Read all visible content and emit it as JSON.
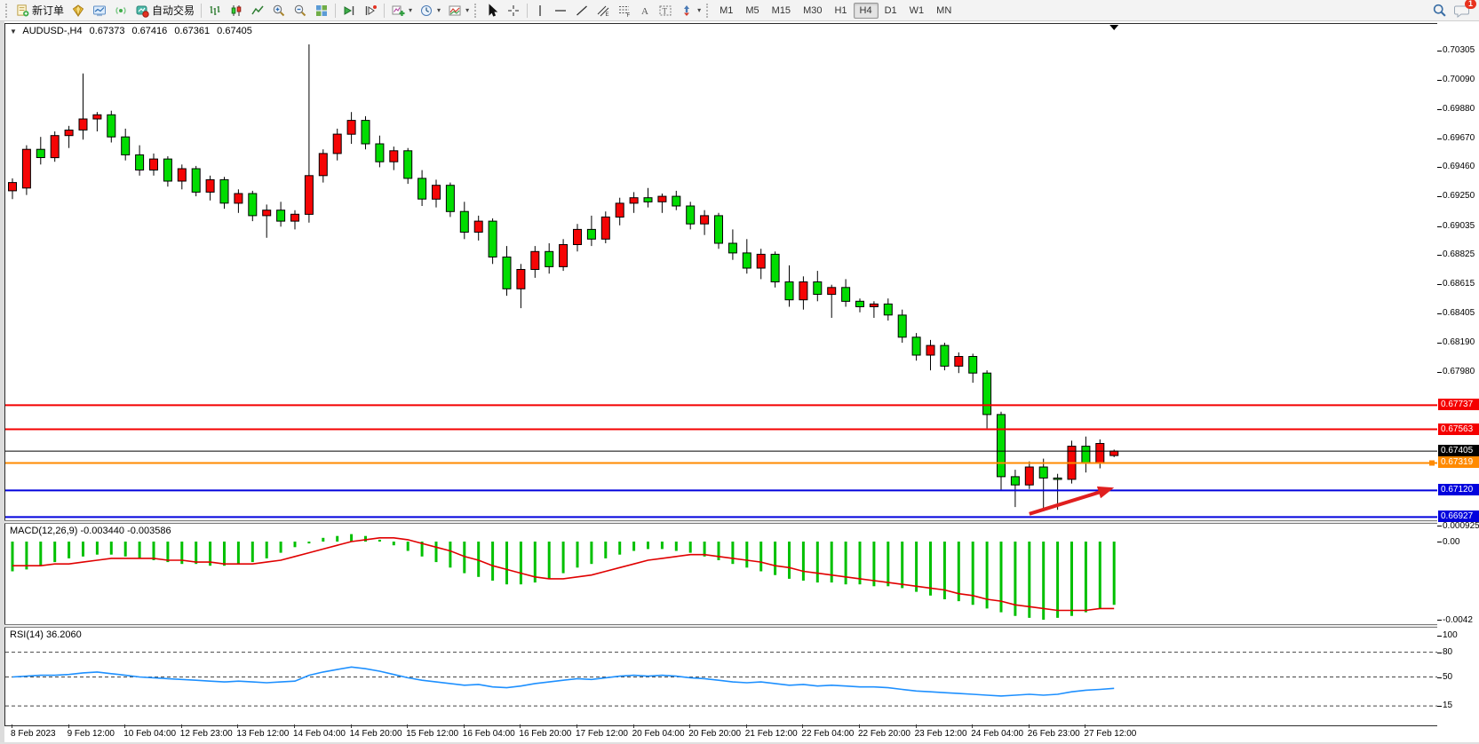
{
  "toolbar": {
    "new_order_label": "新订单",
    "autotrade_label": "自动交易",
    "timeframes": [
      "M1",
      "M5",
      "M15",
      "M30",
      "H1",
      "H4",
      "D1",
      "W1",
      "MN"
    ],
    "active_timeframe": "H4",
    "notification_badge": "1",
    "icon_glyphs": {
      "dropdown_caret": "▾",
      "collapse_arrow": "▼"
    }
  },
  "chart": {
    "collapse_arrow": "▼",
    "symbol": "AUDUSD-,H4",
    "ohlc": {
      "open": "0.67373",
      "high": "0.67416",
      "low": "0.67361",
      "close": "0.67405"
    }
  },
  "indicators": {
    "macd_label": "MACD(12,26,9) -0.003440 -0.003586",
    "rsi_label": "RSI(14) 36.2060"
  },
  "chart_data": {
    "type": "candlestick",
    "symbol": "AUDUSD-,H4",
    "timeframe": "H4",
    "last_ohlc": [
      0.67373,
      0.67416,
      0.67361,
      0.67405
    ],
    "bull_color": "#f50505",
    "bear_color": "#00dd00",
    "ylim": [
      0.66904,
      0.70498
    ],
    "candles": [
      [
        0.6929,
        0.6938,
        0.6923,
        0.6935
      ],
      [
        0.6931,
        0.6962,
        0.6926,
        0.6959
      ],
      [
        0.6959,
        0.6968,
        0.6948,
        0.6953
      ],
      [
        0.6953,
        0.6972,
        0.695,
        0.6969
      ],
      [
        0.6969,
        0.6976,
        0.696,
        0.6973
      ],
      [
        0.6973,
        0.7014,
        0.6966,
        0.6981
      ],
      [
        0.6981,
        0.6986,
        0.6972,
        0.6984
      ],
      [
        0.6984,
        0.6987,
        0.6964,
        0.6968
      ],
      [
        0.6968,
        0.6974,
        0.6951,
        0.6955
      ],
      [
        0.6955,
        0.6962,
        0.694,
        0.6944
      ],
      [
        0.6944,
        0.6956,
        0.694,
        0.6952
      ],
      [
        0.6952,
        0.6954,
        0.6932,
        0.6936
      ],
      [
        0.6936,
        0.6948,
        0.693,
        0.6945
      ],
      [
        0.6945,
        0.6947,
        0.6925,
        0.6928
      ],
      [
        0.6928,
        0.694,
        0.6922,
        0.6937
      ],
      [
        0.6937,
        0.6939,
        0.6916,
        0.692
      ],
      [
        0.692,
        0.693,
        0.6913,
        0.6927
      ],
      [
        0.6927,
        0.6929,
        0.6907,
        0.6911
      ],
      [
        0.6911,
        0.6919,
        0.6895,
        0.6915
      ],
      [
        0.6915,
        0.6921,
        0.6903,
        0.6907
      ],
      [
        0.6907,
        0.6915,
        0.6901,
        0.6912
      ],
      [
        0.6912,
        0.7035,
        0.6906,
        0.694
      ],
      [
        0.694,
        0.6959,
        0.6935,
        0.6956
      ],
      [
        0.6956,
        0.6974,
        0.6951,
        0.697
      ],
      [
        0.697,
        0.6986,
        0.6963,
        0.698
      ],
      [
        0.698,
        0.6983,
        0.6959,
        0.6963
      ],
      [
        0.6963,
        0.6969,
        0.6946,
        0.695
      ],
      [
        0.695,
        0.6961,
        0.6944,
        0.6958
      ],
      [
        0.6958,
        0.696,
        0.6934,
        0.6938
      ],
      [
        0.6938,
        0.6944,
        0.6918,
        0.6923
      ],
      [
        0.6923,
        0.6937,
        0.6917,
        0.6933
      ],
      [
        0.6933,
        0.6935,
        0.691,
        0.6914
      ],
      [
        0.6914,
        0.6921,
        0.6894,
        0.6899
      ],
      [
        0.6899,
        0.6911,
        0.6893,
        0.6907
      ],
      [
        0.6907,
        0.6909,
        0.6876,
        0.6881
      ],
      [
        0.6881,
        0.6889,
        0.6853,
        0.6858
      ],
      [
        0.6858,
        0.6876,
        0.6844,
        0.6872
      ],
      [
        0.6872,
        0.6889,
        0.6866,
        0.6885
      ],
      [
        0.6885,
        0.6891,
        0.6869,
        0.6874
      ],
      [
        0.6874,
        0.6894,
        0.6871,
        0.689
      ],
      [
        0.689,
        0.6905,
        0.6885,
        0.6901
      ],
      [
        0.6901,
        0.6911,
        0.6889,
        0.6894
      ],
      [
        0.6894,
        0.6914,
        0.6891,
        0.691
      ],
      [
        0.691,
        0.6924,
        0.6904,
        0.692
      ],
      [
        0.692,
        0.6928,
        0.6913,
        0.6924
      ],
      [
        0.6924,
        0.6931,
        0.6917,
        0.6921
      ],
      [
        0.6921,
        0.6927,
        0.6913,
        0.6925
      ],
      [
        0.6925,
        0.6929,
        0.6915,
        0.6918
      ],
      [
        0.6918,
        0.6921,
        0.6901,
        0.6905
      ],
      [
        0.6905,
        0.6915,
        0.6897,
        0.6911
      ],
      [
        0.6911,
        0.6913,
        0.6887,
        0.6891
      ],
      [
        0.6891,
        0.6901,
        0.6879,
        0.6884
      ],
      [
        0.6884,
        0.6894,
        0.6869,
        0.6873
      ],
      [
        0.6873,
        0.6887,
        0.6865,
        0.6883
      ],
      [
        0.6883,
        0.6885,
        0.6859,
        0.6863
      ],
      [
        0.6863,
        0.6875,
        0.6845,
        0.685
      ],
      [
        0.685,
        0.6867,
        0.6843,
        0.6863
      ],
      [
        0.6863,
        0.6871,
        0.6849,
        0.6854
      ],
      [
        0.6854,
        0.6861,
        0.6837,
        0.6859
      ],
      [
        0.6859,
        0.6865,
        0.6845,
        0.6849
      ],
      [
        0.6849,
        0.6851,
        0.6841,
        0.6845
      ],
      [
        0.6845,
        0.6849,
        0.6837,
        0.6847
      ],
      [
        0.6847,
        0.6851,
        0.6835,
        0.6839
      ],
      [
        0.6839,
        0.6843,
        0.6819,
        0.6823
      ],
      [
        0.6823,
        0.6826,
        0.6806,
        0.681
      ],
      [
        0.681,
        0.6821,
        0.6799,
        0.6817
      ],
      [
        0.6817,
        0.6819,
        0.6799,
        0.6802
      ],
      [
        0.6802,
        0.6812,
        0.6797,
        0.6809
      ],
      [
        0.6809,
        0.6811,
        0.679,
        0.6797
      ],
      [
        0.6797,
        0.6799,
        0.6757,
        0.6767
      ],
      [
        0.6767,
        0.6769,
        0.6712,
        0.6722
      ],
      [
        0.6722,
        0.6727,
        0.67,
        0.6716
      ],
      [
        0.6716,
        0.6733,
        0.6713,
        0.6729
      ],
      [
        0.6729,
        0.6735,
        0.6697,
        0.6721
      ],
      [
        0.6721,
        0.6724,
        0.6698,
        0.672
      ],
      [
        0.672,
        0.6748,
        0.6717,
        0.6744
      ],
      [
        0.6744,
        0.6751,
        0.6725,
        0.6732
      ],
      [
        0.6732,
        0.6749,
        0.6728,
        0.6746
      ],
      [
        0.67373,
        0.67416,
        0.67361,
        0.67405
      ]
    ],
    "price_axis_ticks": [
      "0.70305",
      "0.70090",
      "0.69880",
      "0.69670",
      "0.69460",
      "0.69250",
      "0.69035",
      "0.68825",
      "0.68615",
      "0.68405",
      "0.68190",
      "0.67980"
    ],
    "hlines": [
      {
        "price": 0.67737,
        "label": "0.67737",
        "color": "#f40000",
        "width": 2
      },
      {
        "price": 0.67563,
        "label": "0.67563",
        "color": "#f40000",
        "width": 2
      },
      {
        "price": 0.67405,
        "label": "0.67405",
        "color": "#000000",
        "width": 1
      },
      {
        "price": 0.67319,
        "label": "0.67319",
        "color": "#ff8a00",
        "width": 2,
        "handle": true
      },
      {
        "price": 0.6712,
        "label": "0.67120",
        "color": "#0202dd",
        "width": 2
      },
      {
        "price": 0.66927,
        "label": "0.66927",
        "color": "#0202dd",
        "width": 2
      }
    ],
    "date_ticks": {
      "indices": [
        0,
        4,
        8,
        12,
        16,
        20,
        24,
        28,
        32,
        36,
        40,
        44,
        48,
        52,
        56,
        60,
        64,
        68,
        72,
        76
      ],
      "labels": [
        "8 Feb 2023",
        "9 Feb 12:00",
        "10 Feb 04:00",
        "12 Feb 23:00",
        "13 Feb 12:00",
        "14 Feb 04:00",
        "14 Feb 20:00",
        "15 Feb 12:00",
        "16 Feb 04:00",
        "16 Feb 20:00",
        "17 Feb 12:00",
        "20 Feb 04:00",
        "20 Feb 20:00",
        "21 Feb 12:00",
        "22 Feb 04:00",
        "22 Feb 20:00",
        "23 Feb 12:00",
        "24 Feb 04:00",
        "26 Feb 23:00",
        "27 Feb 12:00"
      ]
    },
    "macd": {
      "params": "12,26,9",
      "main_value": -0.00344,
      "signal_value": -0.003586,
      "ylim": [
        -0.004438,
        0.000955
      ],
      "axis_labels": [
        {
          "text": "0.000925",
          "value": 0.000925
        },
        {
          "text": "0.00",
          "value": 0.0
        },
        {
          "text": "-0.0042",
          "value": -0.0042
        }
      ],
      "histogram_color": "#00c000",
      "signal_color": "#e00000",
      "histogram": [
        -0.0016,
        -0.0015,
        -0.0013,
        -0.0011,
        -0.0009,
        -0.0008,
        -0.0007,
        -0.0007,
        -0.0008,
        -0.0009,
        -0.001,
        -0.0011,
        -0.0012,
        -0.0012,
        -0.0013,
        -0.0013,
        -0.0012,
        -0.0011,
        -0.0009,
        -0.0006,
        -0.0003,
        -0.0001,
        0.0002,
        0.0003,
        0.0004,
        0.0003,
        0.0001,
        -0.0002,
        -0.0005,
        -0.0008,
        -0.0011,
        -0.0014,
        -0.0017,
        -0.0019,
        -0.0021,
        -0.0023,
        -0.0023,
        -0.0022,
        -0.002,
        -0.0017,
        -0.0014,
        -0.0012,
        -0.0009,
        -0.0007,
        -0.0005,
        -0.0004,
        -0.0004,
        -0.0005,
        -0.0006,
        -0.0008,
        -0.001,
        -0.0012,
        -0.0014,
        -0.0016,
        -0.0018,
        -0.002,
        -0.0021,
        -0.0022,
        -0.0022,
        -0.0023,
        -0.0023,
        -0.0024,
        -0.0024,
        -0.0025,
        -0.0027,
        -0.0029,
        -0.0031,
        -0.0032,
        -0.0034,
        -0.0036,
        -0.0038,
        -0.004,
        -0.0041,
        -0.0042,
        -0.0041,
        -0.004,
        -0.0038,
        -0.0036,
        -0.0034
      ],
      "signal_series": [
        -0.0013,
        -0.0013,
        -0.0013,
        -0.0012,
        -0.0012,
        -0.0011,
        -0.001,
        -0.0009,
        -0.0009,
        -0.0009,
        -0.0009,
        -0.001,
        -0.001,
        -0.0011,
        -0.0011,
        -0.0012,
        -0.0012,
        -0.0012,
        -0.0011,
        -0.001,
        -0.0008,
        -0.0006,
        -0.0004,
        -0.0002,
        0.0,
        0.0001,
        0.0002,
        0.0002,
        0.0001,
        -0.0001,
        -0.0003,
        -0.0005,
        -0.0008,
        -0.001,
        -0.0013,
        -0.0015,
        -0.0017,
        -0.0019,
        -0.002,
        -0.002,
        -0.0019,
        -0.0018,
        -0.0016,
        -0.0014,
        -0.0012,
        -0.001,
        -0.0009,
        -0.0008,
        -0.0007,
        -0.0007,
        -0.0008,
        -0.0009,
        -0.001,
        -0.0011,
        -0.0013,
        -0.0014,
        -0.0016,
        -0.0017,
        -0.0018,
        -0.0019,
        -0.002,
        -0.0021,
        -0.0022,
        -0.0023,
        -0.0024,
        -0.0025,
        -0.0026,
        -0.0028,
        -0.0029,
        -0.0031,
        -0.0032,
        -0.0034,
        -0.0035,
        -0.0036,
        -0.0037,
        -0.0037,
        -0.0037,
        -0.0036,
        -0.0036
      ]
    },
    "rsi": {
      "period": 14,
      "value": 36.206,
      "ylim": [
        -8.6,
        109.68
      ],
      "levels": [
        {
          "text": "100",
          "value": 100,
          "dashed": false
        },
        {
          "text": "80",
          "value": 80,
          "dashed": true
        },
        {
          "text": "50",
          "value": 50,
          "dashed": true
        },
        {
          "text": "15",
          "value": 15,
          "dashed": true
        }
      ],
      "line_color": "#1E90FF",
      "series": [
        50,
        51,
        52,
        52,
        53,
        55,
        56,
        54,
        52,
        50,
        49,
        48,
        47,
        46,
        45,
        44,
        45,
        44,
        43,
        44,
        45,
        52,
        56,
        59,
        62,
        60,
        57,
        53,
        49,
        46,
        44,
        42,
        40,
        41,
        38,
        37,
        39,
        42,
        44,
        46,
        48,
        47,
        49,
        51,
        52,
        51,
        52,
        51,
        49,
        48,
        46,
        44,
        43,
        44,
        42,
        40,
        41,
        39,
        40,
        39,
        38,
        38,
        37,
        35,
        33,
        32,
        31,
        30,
        29,
        28,
        27,
        28,
        29,
        28,
        29,
        32,
        34,
        35,
        36.2
      ]
    },
    "annotation_arrow": {
      "color": "#e01f1f",
      "from_bar": 72,
      "from_price": 0.6695,
      "to_bar": 78,
      "to_price": 0.6714,
      "points_at": "0.67120 support line"
    },
    "shift_marker_bar": 78
  }
}
